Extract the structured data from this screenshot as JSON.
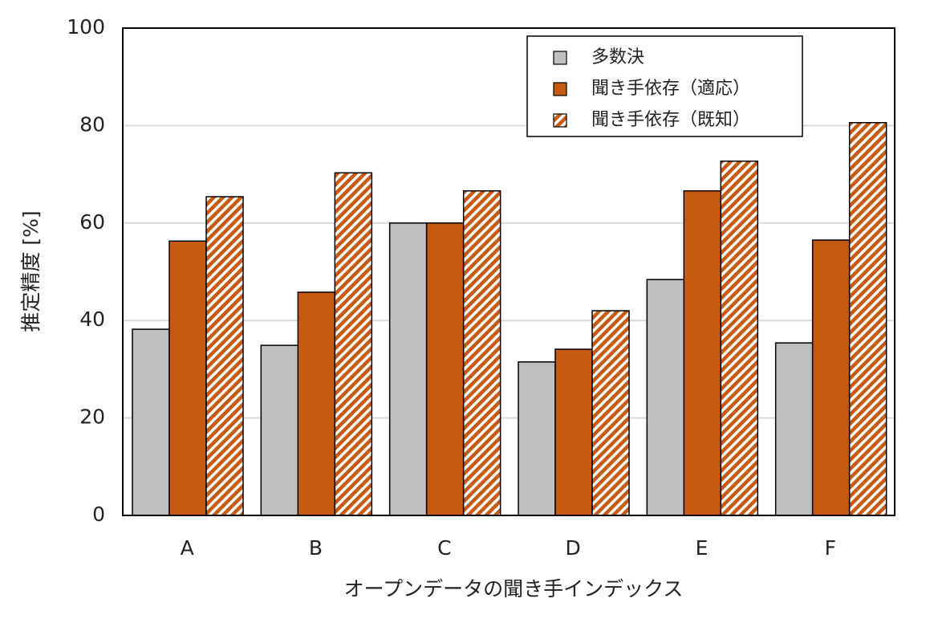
{
  "chart_data": {
    "type": "bar",
    "x_label": "オープンデータの聞き手インデックス",
    "y_label": "推定精度 [%]",
    "categories": [
      "A",
      "B",
      "C",
      "D",
      "E",
      "F"
    ],
    "series": [
      {
        "name": "多数決",
        "color": "#bfbfbf",
        "values": [
          38.2,
          34.9,
          60.0,
          31.5,
          48.4,
          35.4
        ]
      },
      {
        "name": "聞き手依存（適応）",
        "color": "#c55a11",
        "values": [
          56.3,
          45.8,
          60.0,
          34.1,
          66.6,
          56.5
        ]
      },
      {
        "name": "聞き手依存（既知）",
        "color": "#c55a11",
        "hatch": true,
        "values": [
          65.4,
          70.3,
          66.6,
          42.0,
          72.7,
          80.6
        ]
      }
    ],
    "ylim": [
      0,
      100
    ],
    "yticks": [
      0,
      20,
      40,
      60,
      80,
      100
    ],
    "grid": true,
    "legend": "top-right"
  }
}
